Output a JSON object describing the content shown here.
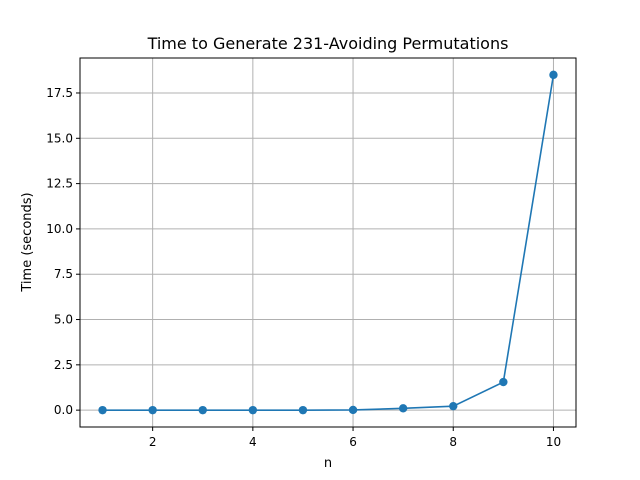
{
  "chart_data": {
    "type": "line",
    "title": "Time to Generate 231-Avoiding Permutations",
    "xlabel": "n",
    "ylabel": "Time (seconds)",
    "x": [
      1,
      2,
      3,
      4,
      5,
      6,
      7,
      8,
      9,
      10
    ],
    "series": [
      {
        "values": [
          0.0,
          0.0,
          0.0,
          0.0,
          0.0,
          0.01,
          0.1,
          0.22,
          1.55,
          18.5
        ],
        "color": "#1f77b4",
        "marker": "circle"
      }
    ],
    "xlim": [
      0.55,
      10.45
    ],
    "ylim": [
      -0.93,
      19.43
    ],
    "xticks": [
      2,
      4,
      6,
      8,
      10
    ],
    "xtick_labels": [
      "2",
      "4",
      "6",
      "8",
      "10"
    ],
    "yticks": [
      0.0,
      2.5,
      5.0,
      7.5,
      10.0,
      12.5,
      15.0,
      17.5
    ],
    "ytick_labels": [
      "0.0",
      "2.5",
      "5.0",
      "7.5",
      "10.0",
      "12.5",
      "15.0",
      "17.5"
    ],
    "grid": true,
    "legend": "none"
  }
}
